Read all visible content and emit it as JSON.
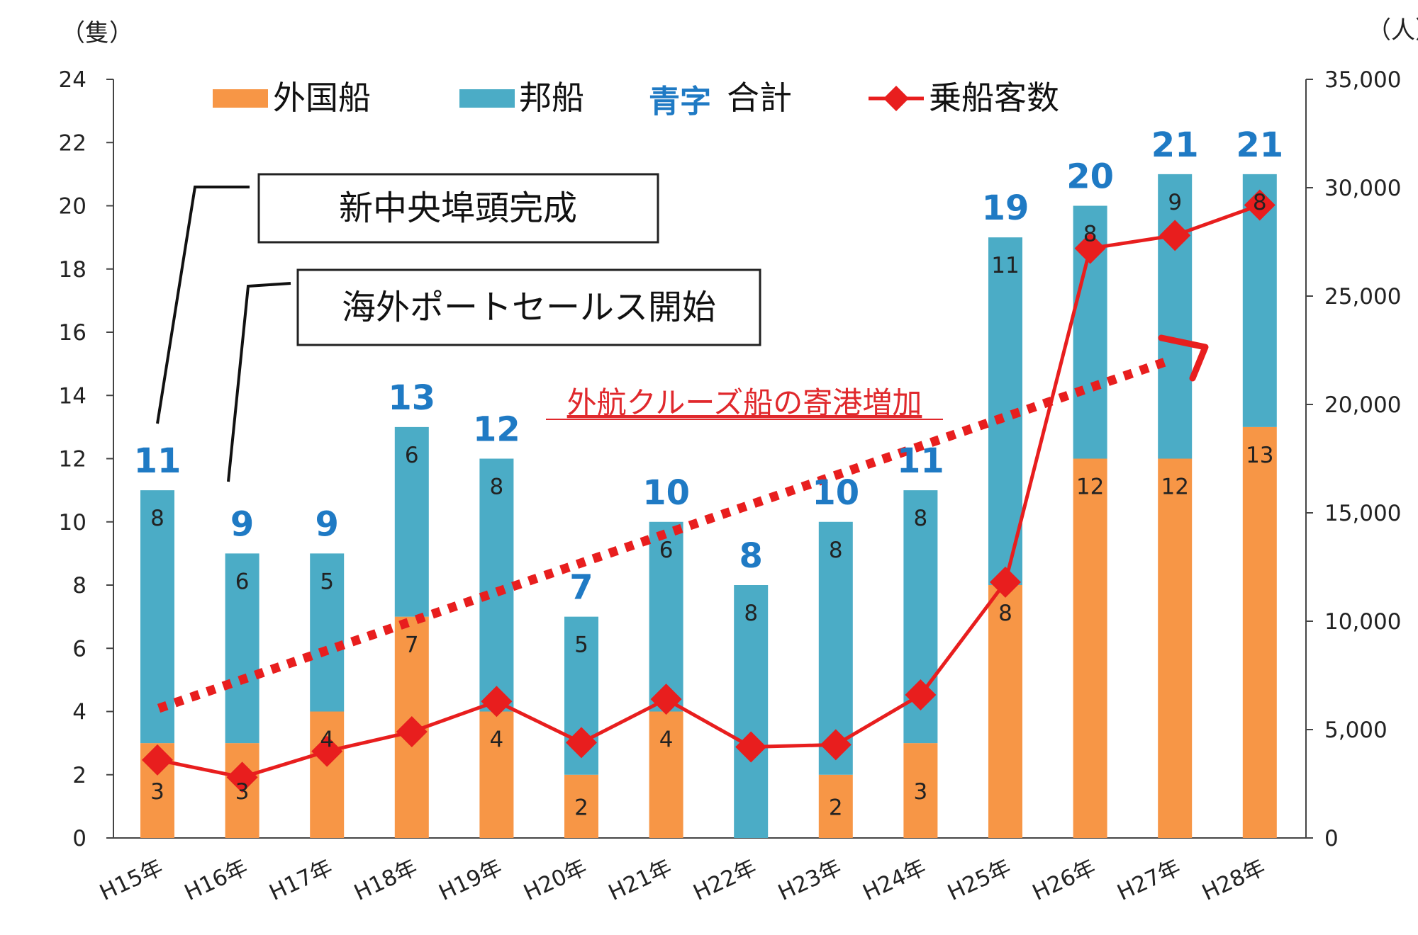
{
  "chart_data": {
    "type": "bar",
    "stacked": true,
    "categories": [
      "H15年",
      "H16年",
      "H17年",
      "H18年",
      "H19年",
      "H20年",
      "H21年",
      "H22年",
      "H23年",
      "H24年",
      "H25年",
      "H26年",
      "H27年",
      "H28年"
    ],
    "series": [
      {
        "name": "外国船",
        "values": [
          3,
          3,
          4,
          7,
          4,
          2,
          4,
          0,
          2,
          3,
          8,
          12,
          12,
          13
        ],
        "color": "#F79646"
      },
      {
        "name": "邦船",
        "values": [
          8,
          6,
          5,
          6,
          8,
          5,
          6,
          8,
          8,
          8,
          11,
          8,
          9,
          8
        ],
        "color": "#4BACC6"
      }
    ],
    "totals": {
      "name": "合計",
      "legend_prefix": "青字",
      "values": [
        11,
        9,
        9,
        13,
        12,
        7,
        10,
        8,
        10,
        11,
        19,
        20,
        21,
        21
      ],
      "color": "#1F7AC4"
    },
    "line_series": {
      "name": "乗船客数",
      "values": [
        3600,
        2800,
        4000,
        4900,
        6300,
        4400,
        6400,
        4200,
        4300,
        6600,
        11800,
        27200,
        27800,
        29200
      ],
      "color": "#E81E1E",
      "marker": "diamond"
    },
    "y_left": {
      "unit_label": "（隻）",
      "min": 0,
      "max": 24,
      "ticks": [
        "0",
        "2",
        "4",
        "6",
        "8",
        "10",
        "12",
        "14",
        "16",
        "18",
        "20",
        "22",
        "24"
      ]
    },
    "y_right": {
      "unit_label": "（人）",
      "min": 0,
      "max": 35000,
      "ticks": [
        "0",
        "5,000",
        "10,000",
        "15,000",
        "20,000",
        "25,000",
        "30,000",
        "35,000"
      ]
    },
    "annotations": {
      "box1": "新中央埠頭完成",
      "box2": "海外ポートセールス開始",
      "trend": "外航クルーズ船の寄港増加"
    },
    "legend_position": "top",
    "grid": false
  }
}
